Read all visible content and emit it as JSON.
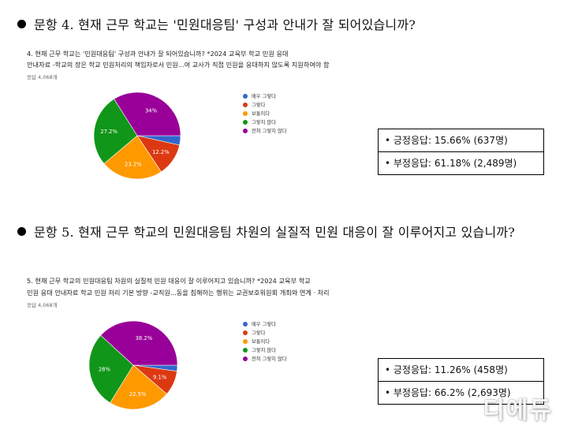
{
  "colors": {
    "매우 그렇다": "#3366cc",
    "그렇다": "#dc3912",
    "보통이다": "#ff9900",
    "그렇지 않다": "#109618",
    "전혀 그렇지 않다": "#990099"
  },
  "questions": [
    {
      "heading": "문항 4. 현재 근무 학교는 '민원대응팀' 구성과 안내가 잘 되어있습니까?",
      "question_lines": [
        "4. 현재 근무 학교는 '민원대응팀' 구성과 안내가 잘 되어있습니까?  *2024 교육부 학교 민원 응대",
        "안내자료 -학교의 장은 학교 민원처리의 책임자로서 민원...여 교사가 직접 민원을 응대하지 않도록 지원하여야 함"
      ],
      "response_count": "응답 4,068개",
      "summary": [
        "• 긍정응답: 15.66% (637명)",
        "• 부정응답: 61.18% (2,489명)"
      ],
      "chart_data": {
        "type": "pie",
        "categories": [
          "매우 그렇다",
          "그렇다",
          "보통이다",
          "그렇지 않다",
          "전혀 그렇지 않다"
        ],
        "values": [
          3.5,
          12.2,
          23.2,
          27.2,
          34.0
        ],
        "data_labels": [
          "",
          "12.2%",
          "23.2%",
          "27.2%",
          "34%"
        ],
        "legend": "right"
      }
    },
    {
      "heading": "문항 5. 현재 근무 학교의 민원대응팀 차원의 실질적 민원 대응이 잘 이루어지고 있습니까?",
      "question_lines": [
        "5. 현재 근무 학교의 민원대응팀 차원의 실질적 민원 대응이 잘 이루어지고 있습니까?  *2024 교육부 학교",
        "민원 응대 안내자료 학교 민원 처리 기본 방향 -교직원...동을 침해하는 행위는 교권보호위원회 개최와 연계ㆍ처리"
      ],
      "response_count": "응답 4,068개",
      "summary": [
        "• 긍정응답: 11.26% (458명)",
        "• 부정응답: 66.2% (2,693명)"
      ],
      "chart_data": {
        "type": "pie",
        "categories": [
          "매우 그렇다",
          "그렇다",
          "보통이다",
          "그렇지 않다",
          "전혀 그렇지 않다"
        ],
        "values": [
          2.2,
          9.1,
          22.5,
          28.0,
          38.2
        ],
        "data_labels": [
          "",
          "9.1%",
          "22.5%",
          "28%",
          "38.2%"
        ],
        "legend": "right"
      }
    }
  ],
  "watermark": "디에듀"
}
